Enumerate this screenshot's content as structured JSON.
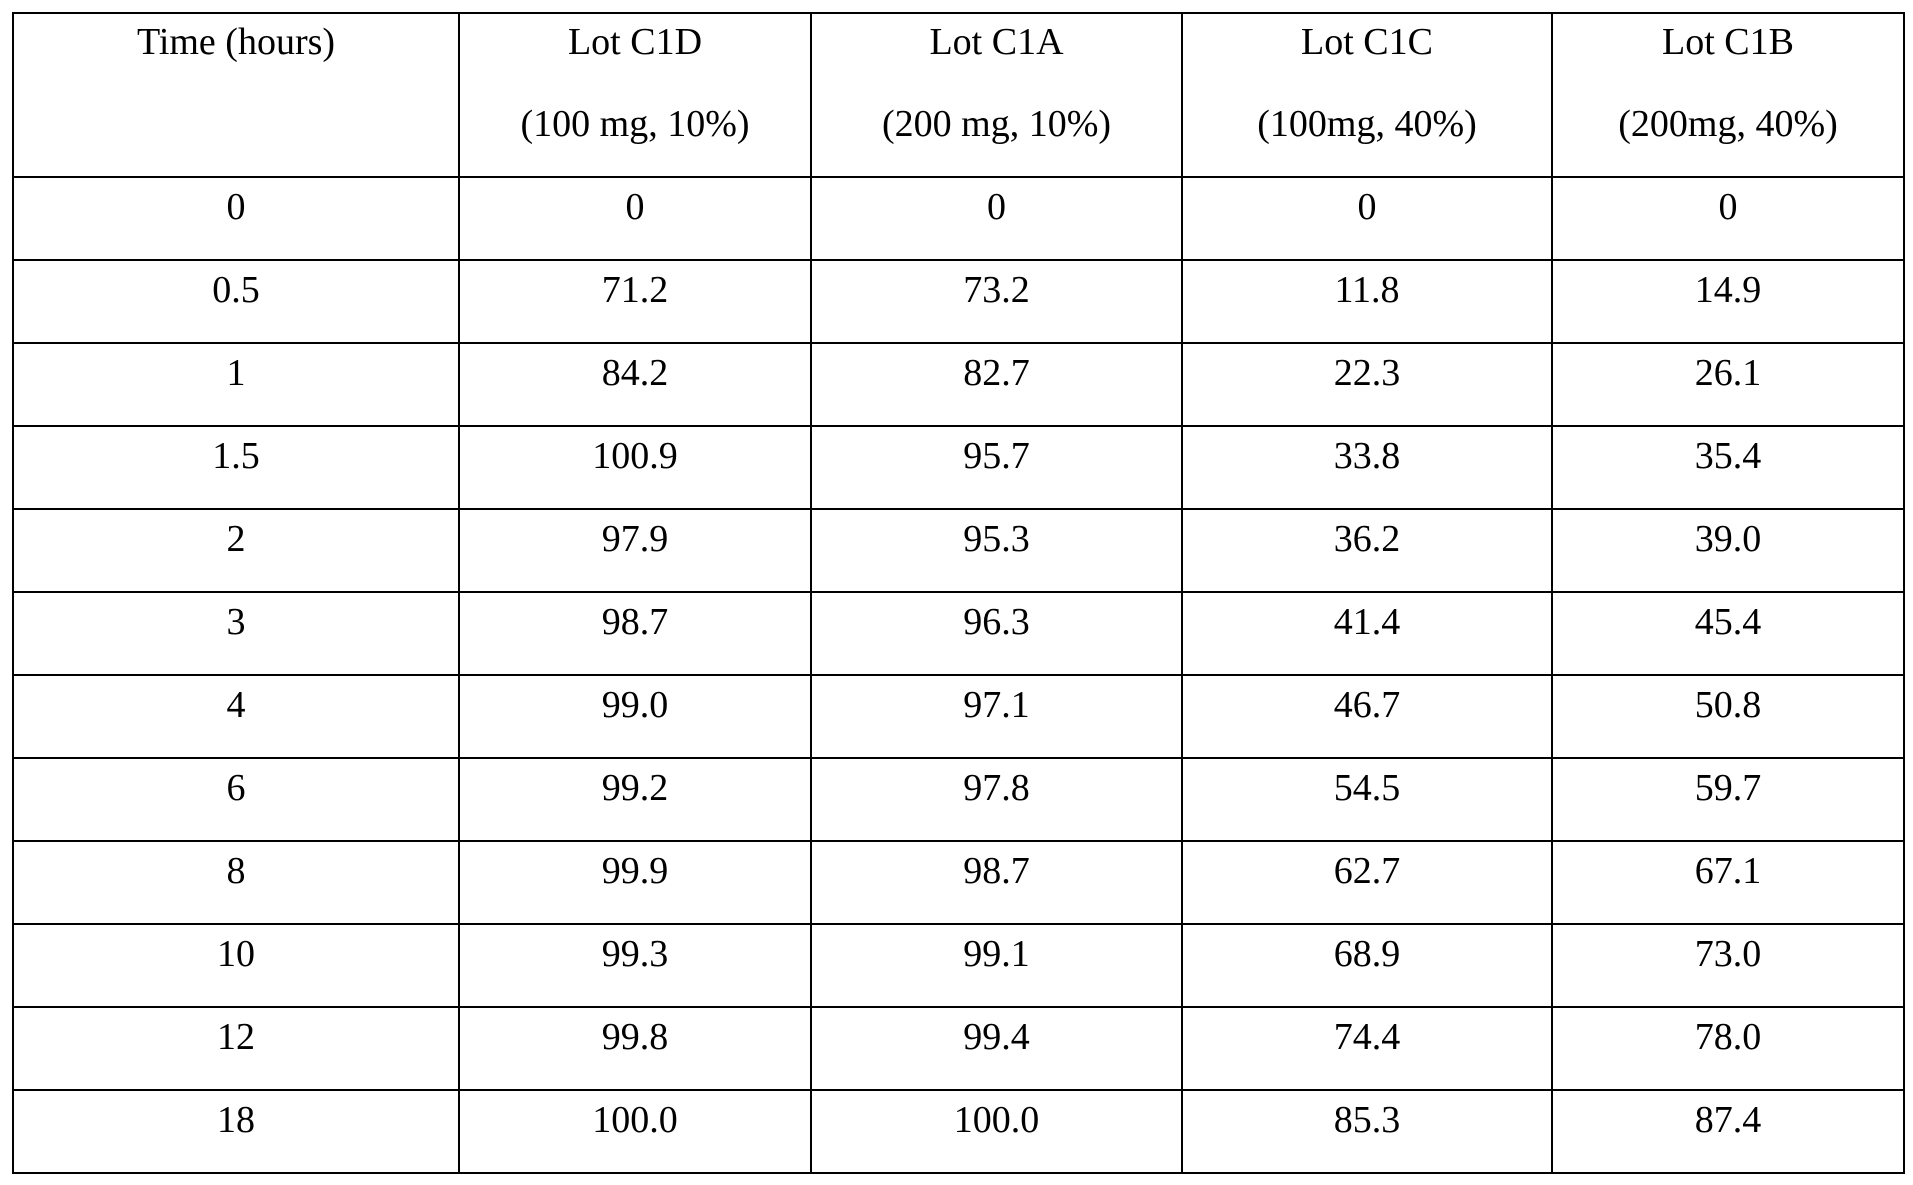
{
  "table": {
    "header": [
      [
        "Time (hours)"
      ],
      [
        "Lot C1D",
        "(100 mg, 10%)"
      ],
      [
        "Lot C1A",
        "(200 mg, 10%)"
      ],
      [
        "Lot C1C",
        "(100mg, 40%)"
      ],
      [
        "Lot C1B",
        "(200mg, 40%)"
      ]
    ],
    "rows": [
      [
        "0",
        "0",
        "0",
        "0",
        "0"
      ],
      [
        "0.5",
        "71.2",
        "73.2",
        "11.8",
        "14.9"
      ],
      [
        "1",
        "84.2",
        "82.7",
        "22.3",
        "26.1"
      ],
      [
        "1.5",
        "100.9",
        "95.7",
        "33.8",
        "35.4"
      ],
      [
        "2",
        "97.9",
        "95.3",
        "36.2",
        "39.0"
      ],
      [
        "3",
        "98.7",
        "96.3",
        "41.4",
        "45.4"
      ],
      [
        "4",
        "99.0",
        "97.1",
        "46.7",
        "50.8"
      ],
      [
        "6",
        "99.2",
        "97.8",
        "54.5",
        "59.7"
      ],
      [
        "8",
        "99.9",
        "98.7",
        "62.7",
        "67.1"
      ],
      [
        "10",
        "99.3",
        "99.1",
        "68.9",
        "73.0"
      ],
      [
        "12",
        "99.8",
        "99.4",
        "74.4",
        "78.0"
      ],
      [
        "18",
        "100.0",
        "100.0",
        "85.3",
        "87.4"
      ]
    ]
  }
}
